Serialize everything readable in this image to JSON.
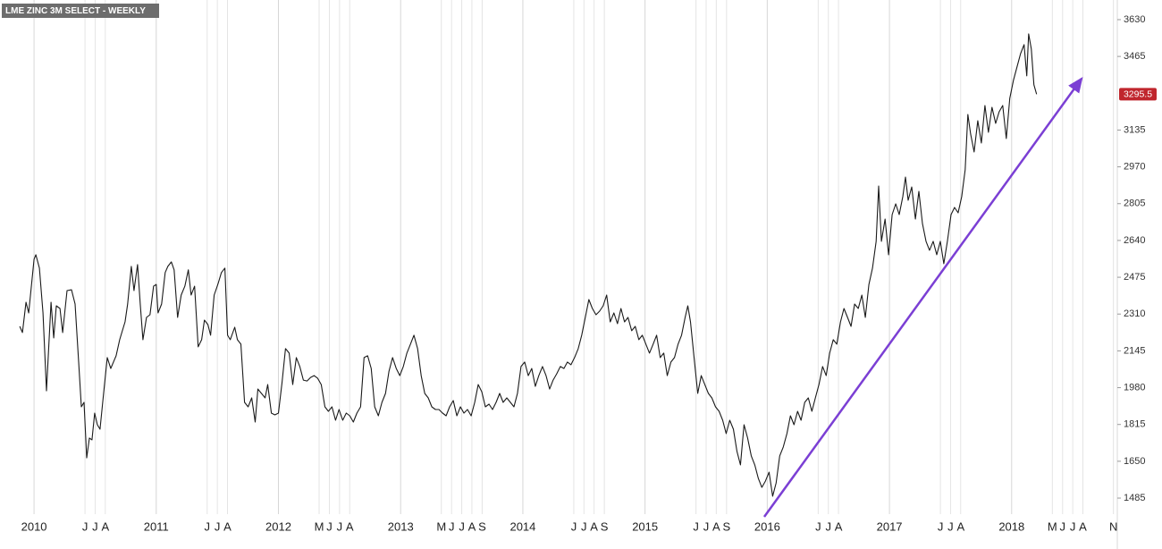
{
  "chart_data": {
    "type": "line",
    "title": "LME ZINC 3M SELECT - WEEKLY",
    "color": "#1a1a1a",
    "grid": "vertical",
    "last_price": 3295.5,
    "xlim": [
      2009.78,
      2018.85
    ],
    "ylim": [
      1413,
      3698
    ],
    "yticks": [
      1485,
      1650,
      1815,
      1980,
      2145,
      2310,
      2475,
      2640,
      2805,
      2970,
      3135,
      3465,
      3630
    ],
    "xticks": [
      2010,
      {
        "value": 2010.417,
        "label": "J"
      },
      {
        "value": 2010.5,
        "label": "J"
      },
      {
        "value": 2010.583,
        "label": "A"
      },
      2011,
      {
        "value": 2011.417,
        "label": "J"
      },
      {
        "value": 2011.5,
        "label": "J"
      },
      {
        "value": 2011.583,
        "label": "A"
      },
      2012,
      {
        "value": 2012.333,
        "label": "M"
      },
      {
        "value": 2012.417,
        "label": "J"
      },
      {
        "value": 2012.5,
        "label": "J"
      },
      {
        "value": 2012.583,
        "label": "A"
      },
      2013,
      {
        "value": 2013.333,
        "label": "M"
      },
      {
        "value": 2013.417,
        "label": "J"
      },
      {
        "value": 2013.5,
        "label": "J"
      },
      {
        "value": 2013.583,
        "label": "A"
      },
      {
        "value": 2013.667,
        "label": "S"
      },
      2014,
      {
        "value": 2014.417,
        "label": "J"
      },
      {
        "value": 2014.5,
        "label": "J"
      },
      {
        "value": 2014.583,
        "label": "A"
      },
      {
        "value": 2014.667,
        "label": "S"
      },
      2015,
      {
        "value": 2015.417,
        "label": "J"
      },
      {
        "value": 2015.5,
        "label": "J"
      },
      {
        "value": 2015.583,
        "label": "A"
      },
      {
        "value": 2015.667,
        "label": "S"
      },
      2016,
      {
        "value": 2016.417,
        "label": "J"
      },
      {
        "value": 2016.5,
        "label": "J"
      },
      {
        "value": 2016.583,
        "label": "A"
      },
      2017,
      {
        "value": 2017.417,
        "label": "J"
      },
      {
        "value": 2017.5,
        "label": "J"
      },
      {
        "value": 2017.583,
        "label": "A"
      },
      2018,
      {
        "value": 2018.333,
        "label": "M"
      },
      {
        "value": 2018.417,
        "label": "J"
      },
      {
        "value": 2018.5,
        "label": "J"
      },
      {
        "value": 2018.583,
        "label": "A"
      },
      {
        "value": 2018.833,
        "label": "N"
      }
    ],
    "x": [
      2009.883,
      2009.905,
      2009.934,
      2009.956,
      2010.0,
      2010.015,
      2010.044,
      2010.073,
      2010.102,
      2010.139,
      2010.161,
      2010.182,
      2010.212,
      2010.234,
      2010.27,
      2010.307,
      2010.336,
      2010.365,
      2010.387,
      2010.409,
      2010.431,
      2010.453,
      2010.474,
      2010.496,
      2010.518,
      2010.54,
      2010.569,
      2010.599,
      2010.628,
      2010.672,
      2010.701,
      2010.723,
      2010.745,
      2010.766,
      2010.796,
      2010.818,
      2010.847,
      2010.869,
      2010.891,
      2010.92,
      2010.949,
      2010.978,
      2011.0,
      2011.015,
      2011.044,
      2011.073,
      2011.095,
      2011.124,
      2011.146,
      2011.175,
      2011.204,
      2011.234,
      2011.263,
      2011.285,
      2011.314,
      2011.343,
      2011.372,
      2011.394,
      2011.423,
      2011.445,
      2011.474,
      2011.504,
      2011.533,
      2011.562,
      2011.584,
      2011.606,
      2011.642,
      2011.664,
      2011.693,
      2011.723,
      2011.752,
      2011.781,
      2011.81,
      2011.832,
      2011.861,
      2011.891,
      2011.912,
      2011.942,
      2011.971,
      2012.0,
      2012.029,
      2012.058,
      2012.088,
      2012.117,
      2012.146,
      2012.175,
      2012.204,
      2012.234,
      2012.263,
      2012.292,
      2012.321,
      2012.35,
      2012.38,
      2012.409,
      2012.438,
      2012.467,
      2012.496,
      2012.526,
      2012.555,
      2012.584,
      2012.613,
      2012.642,
      2012.672,
      2012.701,
      2012.73,
      2012.759,
      2012.788,
      2012.818,
      2012.847,
      2012.876,
      2012.905,
      2012.934,
      2012.964,
      2012.993,
      2013.022,
      2013.051,
      2013.08,
      2013.109,
      2013.139,
      2013.168,
      2013.197,
      2013.226,
      2013.255,
      2013.285,
      2013.314,
      2013.343,
      2013.372,
      2013.401,
      2013.431,
      2013.46,
      2013.489,
      2013.518,
      2013.547,
      2013.577,
      2013.606,
      2013.635,
      2013.664,
      2013.693,
      2013.723,
      2013.752,
      2013.781,
      2013.81,
      2013.839,
      2013.869,
      2013.898,
      2013.927,
      2013.956,
      2013.985,
      2014.015,
      2014.044,
      2014.073,
      2014.102,
      2014.131,
      2014.161,
      2014.19,
      2014.219,
      2014.248,
      2014.277,
      2014.307,
      2014.336,
      2014.365,
      2014.394,
      2014.423,
      2014.453,
      2014.482,
      2014.511,
      2014.54,
      2014.569,
      2014.599,
      2014.628,
      2014.657,
      2014.686,
      2014.715,
      2014.745,
      2014.774,
      2014.803,
      2014.832,
      2014.861,
      2014.891,
      2014.92,
      2014.949,
      2014.978,
      2015.007,
      2015.036,
      2015.066,
      2015.095,
      2015.124,
      2015.153,
      2015.182,
      2015.212,
      2015.241,
      2015.27,
      2015.299,
      2015.328,
      2015.35,
      2015.372,
      2015.401,
      2015.431,
      2015.46,
      2015.489,
      2015.518,
      2015.547,
      2015.577,
      2015.606,
      2015.635,
      2015.664,
      2015.693,
      2015.723,
      2015.752,
      2015.781,
      2015.81,
      2015.839,
      2015.869,
      2015.898,
      2015.927,
      2015.956,
      2015.985,
      2016.015,
      2016.044,
      2016.073,
      2016.102,
      2016.131,
      2016.161,
      2016.19,
      2016.219,
      2016.248,
      2016.277,
      2016.307,
      2016.336,
      2016.365,
      2016.394,
      2016.423,
      2016.453,
      2016.482,
      2016.511,
      2016.54,
      2016.569,
      2016.599,
      2016.628,
      2016.657,
      2016.686,
      2016.715,
      2016.745,
      2016.774,
      2016.803,
      2016.832,
      2016.861,
      2016.891,
      2016.912,
      2016.934,
      2016.964,
      2016.993,
      2017.022,
      2017.051,
      2017.08,
      2017.109,
      2017.131,
      2017.153,
      2017.182,
      2017.212,
      2017.241,
      2017.27,
      2017.299,
      2017.328,
      2017.358,
      2017.387,
      2017.416,
      2017.445,
      2017.474,
      2017.504,
      2017.533,
      2017.562,
      2017.591,
      2017.62,
      2017.642,
      2017.664,
      2017.693,
      2017.723,
      2017.752,
      2017.781,
      2017.81,
      2017.839,
      2017.869,
      2017.898,
      2017.927,
      2017.956,
      2017.985,
      2018.015,
      2018.044,
      2018.073,
      2018.102,
      2018.124,
      2018.139,
      2018.161,
      2018.182,
      2018.204
    ],
    "values": [
      2255,
      2227,
      2363,
      2315,
      2556,
      2576,
      2516,
      2315,
      1966,
      2363,
      2203,
      2347,
      2335,
      2227,
      2415,
      2419,
      2355,
      2095,
      1894,
      1914,
      1665,
      1754,
      1746,
      1866,
      1814,
      1794,
      1954,
      2115,
      2066,
      2123,
      2195,
      2235,
      2275,
      2355,
      2524,
      2415,
      2532,
      2355,
      2195,
      2295,
      2307,
      2435,
      2443,
      2315,
      2355,
      2496,
      2524,
      2544,
      2508,
      2295,
      2395,
      2435,
      2508,
      2395,
      2435,
      2163,
      2195,
      2283,
      2263,
      2215,
      2395,
      2443,
      2496,
      2516,
      2215,
      2195,
      2251,
      2195,
      2175,
      1914,
      1894,
      1934,
      1826,
      1974,
      1954,
      1934,
      1994,
      1866,
      1858,
      1866,
      2002,
      2155,
      2135,
      1994,
      2115,
      2075,
      2014,
      2010,
      2026,
      2034,
      2022,
      1994,
      1894,
      1874,
      1894,
      1834,
      1882,
      1834,
      1866,
      1854,
      1826,
      1866,
      1894,
      2115,
      2123,
      2066,
      1894,
      1854,
      1914,
      1954,
      2054,
      2115,
      2066,
      2034,
      2075,
      2135,
      2175,
      2215,
      2155,
      2034,
      1954,
      1934,
      1894,
      1882,
      1882,
      1866,
      1854,
      1894,
      1922,
      1854,
      1894,
      1866,
      1882,
      1854,
      1914,
      1994,
      1962,
      1894,
      1906,
      1882,
      1914,
      1954,
      1914,
      1934,
      1914,
      1894,
      1954,
      2075,
      2095,
      2034,
      2066,
      1986,
      2034,
      2075,
      2034,
      1974,
      2014,
      2042,
      2075,
      2066,
      2095,
      2083,
      2115,
      2155,
      2215,
      2295,
      2375,
      2335,
      2307,
      2323,
      2347,
      2395,
      2275,
      2315,
      2267,
      2335,
      2275,
      2295,
      2235,
      2255,
      2195,
      2215,
      2175,
      2135,
      2175,
      2215,
      2115,
      2135,
      2034,
      2095,
      2115,
      2175,
      2215,
      2295,
      2347,
      2275,
      2115,
      1954,
      2034,
      1994,
      1954,
      1934,
      1894,
      1874,
      1834,
      1774,
      1834,
      1794,
      1694,
      1634,
      1814,
      1754,
      1674,
      1634,
      1573,
      1533,
      1561,
      1601,
      1493,
      1553,
      1674,
      1714,
      1774,
      1854,
      1814,
      1874,
      1834,
      1914,
      1934,
      1874,
      1934,
      1994,
      2075,
      2034,
      2135,
      2195,
      2175,
      2275,
      2335,
      2295,
      2255,
      2355,
      2335,
      2395,
      2295,
      2443,
      2516,
      2636,
      2884,
      2636,
      2736,
      2576,
      2756,
      2804,
      2756,
      2836,
      2924,
      2820,
      2880,
      2736,
      2860,
      2716,
      2636,
      2596,
      2636,
      2576,
      2636,
      2536,
      2636,
      2756,
      2788,
      2764,
      2836,
      2957,
      3205,
      3117,
      3037,
      3177,
      3077,
      3245,
      3125,
      3237,
      3165,
      3217,
      3245,
      3097,
      3277,
      3358,
      3418,
      3478,
      3518,
      3378,
      3566,
      3498,
      3338,
      3295.5
    ]
  }
}
